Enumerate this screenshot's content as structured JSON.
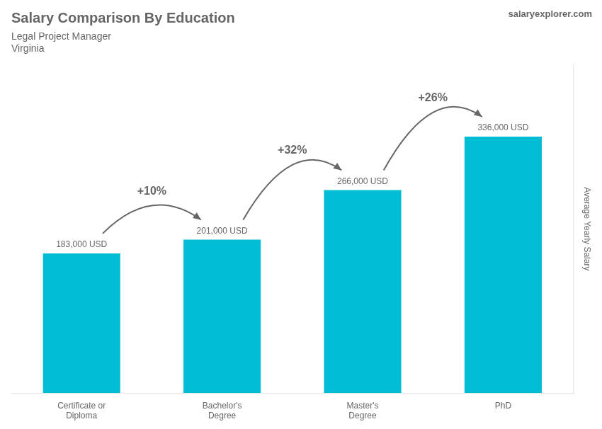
{
  "chart_data": {
    "type": "bar",
    "title": "Salary Comparison By Education",
    "subtitle": [
      "Legal Project Manager",
      "Virginia"
    ],
    "ylabel": "Average Yearly Salary",
    "categories": [
      "Certificate or\nDiploma",
      "Bachelor's\nDegree",
      "Master's\nDegree",
      "PhD"
    ],
    "values": [
      183000,
      201000,
      266000,
      336000
    ],
    "value_labels": [
      "183,000 USD",
      "201,000 USD",
      "266,000 USD",
      "336,000 USD"
    ],
    "data_labels": true,
    "color": "#00bcd4",
    "ylim": [
      0,
      430000
    ],
    "grid": false,
    "tick_labels": "x",
    "annotations": [
      {
        "text": "+10%",
        "between": [
          "Certificate or\nDiploma",
          "Bachelor's\nDegree"
        ]
      },
      {
        "text": "+32%",
        "between": [
          "Bachelor's\nDegree",
          "Master's\nDegree"
        ]
      },
      {
        "text": "+26%",
        "between": [
          "Master's\nDegree",
          "PhD"
        ]
      },
      {
        "text": "salaryexplorer.com"
      }
    ]
  }
}
